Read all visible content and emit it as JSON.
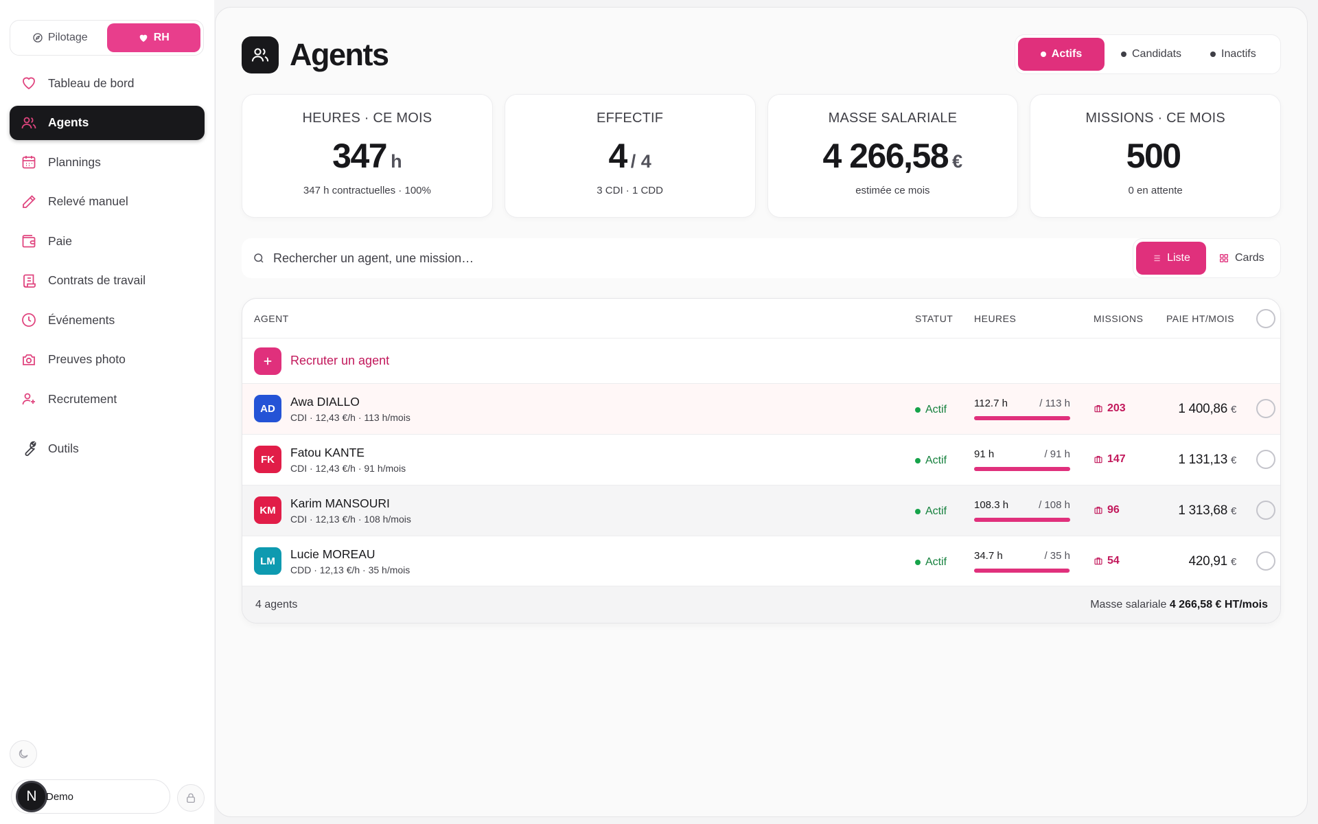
{
  "sidebar": {
    "modes": [
      {
        "label": "Pilotage",
        "icon": "compass-icon",
        "active": false
      },
      {
        "label": "RH",
        "icon": "heart-icon",
        "active": true
      }
    ],
    "items": [
      {
        "label": "Tableau de bord",
        "icon": "heart-icon"
      },
      {
        "label": "Agents",
        "icon": "users-icon",
        "active": true
      },
      {
        "label": "Plannings",
        "icon": "calendar-icon"
      },
      {
        "label": "Relevé manuel",
        "icon": "pencil-icon"
      },
      {
        "label": "Paie",
        "icon": "wallet-icon"
      },
      {
        "label": "Contrats de travail",
        "icon": "scroll-icon"
      },
      {
        "label": "Événements",
        "icon": "clock-icon"
      },
      {
        "label": "Preuves photo",
        "icon": "camera-icon"
      },
      {
        "label": "Recrutement",
        "icon": "user-plus-icon"
      },
      {
        "label": "Outils",
        "icon": "wrench-icon"
      }
    ],
    "user": {
      "initial": "N",
      "name": "Demo"
    }
  },
  "header": {
    "title": "Agents",
    "tabs": [
      {
        "label": "Actifs",
        "active": true
      },
      {
        "label": "Candidats",
        "active": false
      },
      {
        "label": "Inactifs",
        "active": false
      }
    ]
  },
  "stats": [
    {
      "label": "HEURES · CE MOIS",
      "value": "347",
      "unit": "h",
      "sub": "347 h contractuelles · 100%"
    },
    {
      "label": "EFFECTIF",
      "value": "4",
      "unit": "/ 4",
      "sub": "3 CDI · 1 CDD"
    },
    {
      "label": "MASSE SALARIALE",
      "value": "4 266,58",
      "unit": "€",
      "sub": "estimée ce mois"
    },
    {
      "label": "MISSIONS · CE MOIS",
      "value": "500",
      "unit": "",
      "sub": "0 en attente"
    }
  ],
  "search": {
    "placeholder": "Rechercher un agent, une mission…"
  },
  "view": {
    "list": "Liste",
    "cards": "Cards",
    "active": "Liste"
  },
  "table": {
    "columns": {
      "agent": "AGENT",
      "status": "STATUT",
      "hours": "HEURES",
      "missions": "MISSIONS",
      "pay": "PAIE HT/MOIS"
    },
    "recruit_label": "Recruter un agent",
    "rows": [
      {
        "initials": "AD",
        "color": "#2453d6",
        "name": "Awa DIALLO",
        "meta": "CDI · 12,43 €/h · 113 h/mois",
        "status": "Actif",
        "hours": "112.7 h",
        "contract": "/ 113 h",
        "progress": 0.997,
        "missions": "203",
        "pay": "1 400,86",
        "currency": "€"
      },
      {
        "initials": "FK",
        "color": "#e11d48",
        "name": "Fatou KANTE",
        "meta": "CDI · 12,43 €/h · 91 h/mois",
        "status": "Actif",
        "hours": "91 h",
        "contract": "/ 91 h",
        "progress": 1.0,
        "missions": "147",
        "pay": "1 131,13",
        "currency": "€"
      },
      {
        "initials": "KM",
        "color": "#e11d48",
        "name": "Karim MANSOURI",
        "meta": "CDI · 12,13 €/h · 108 h/mois",
        "status": "Actif",
        "hours": "108.3 h",
        "contract": "/ 108 h",
        "progress": 1.0,
        "missions": "96",
        "pay": "1 313,68",
        "currency": "€"
      },
      {
        "initials": "LM",
        "color": "#0e9ab0",
        "name": "Lucie MOREAU",
        "meta": "CDD · 12,13 €/h · 35 h/mois",
        "status": "Actif",
        "hours": "34.7 h",
        "contract": "/ 35 h",
        "progress": 0.991,
        "missions": "54",
        "pay": "420,91",
        "currency": "€"
      }
    ],
    "footer": {
      "count": "4 agents",
      "total_label": "Masse salariale",
      "total_value": "4 266,58 € HT/mois"
    }
  },
  "colors": {
    "accent": "#e0307c",
    "status_green": "#16a34a",
    "dark": "#18181b"
  }
}
